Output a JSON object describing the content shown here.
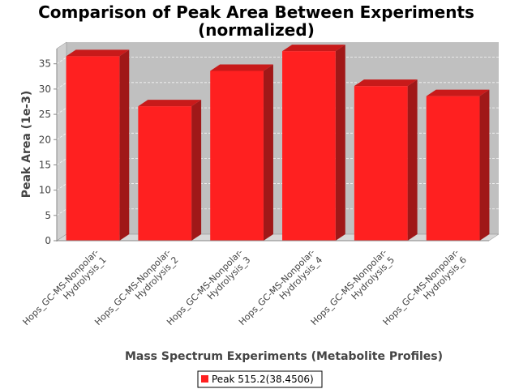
{
  "chart_data": {
    "type": "bar",
    "title": "Comparison of Peak Area Between Experiments",
    "subtitle": "(normalized)",
    "xlabel": "Mass Spectrum Experiments (Metabolite Profiles)",
    "ylabel": "Peak Area (1e-3)",
    "categories": [
      [
        "Hops_GC-MS-Nonpolar-",
        "Hydrolysis_1"
      ],
      [
        "Hops_GC-MS-Nonpolar-",
        "Hydrolysis_2"
      ],
      [
        "Hops_GC-MS-Nonpolar-",
        "Hydrolysis_3"
      ],
      [
        "Hops_GC-MS-Nonpolar-",
        "Hydrolysis_4"
      ],
      [
        "Hops_GC-MS-Nonpolar-",
        "Hydrolysis_5"
      ],
      [
        "Hops_GC-MS-Nonpolar-",
        "Hydrolysis_6"
      ]
    ],
    "series": [
      {
        "name": "Peak 515.2(38.4506)",
        "values": [
          36.5,
          26.6,
          33.6,
          37.5,
          30.6,
          28.6
        ],
        "color": "#ff2020"
      }
    ],
    "yticks": [
      0,
      5,
      10,
      15,
      20,
      25,
      30,
      35
    ],
    "ylim": [
      0,
      38
    ],
    "grid": true,
    "legend": "bottom-center",
    "render_3d": true
  }
}
